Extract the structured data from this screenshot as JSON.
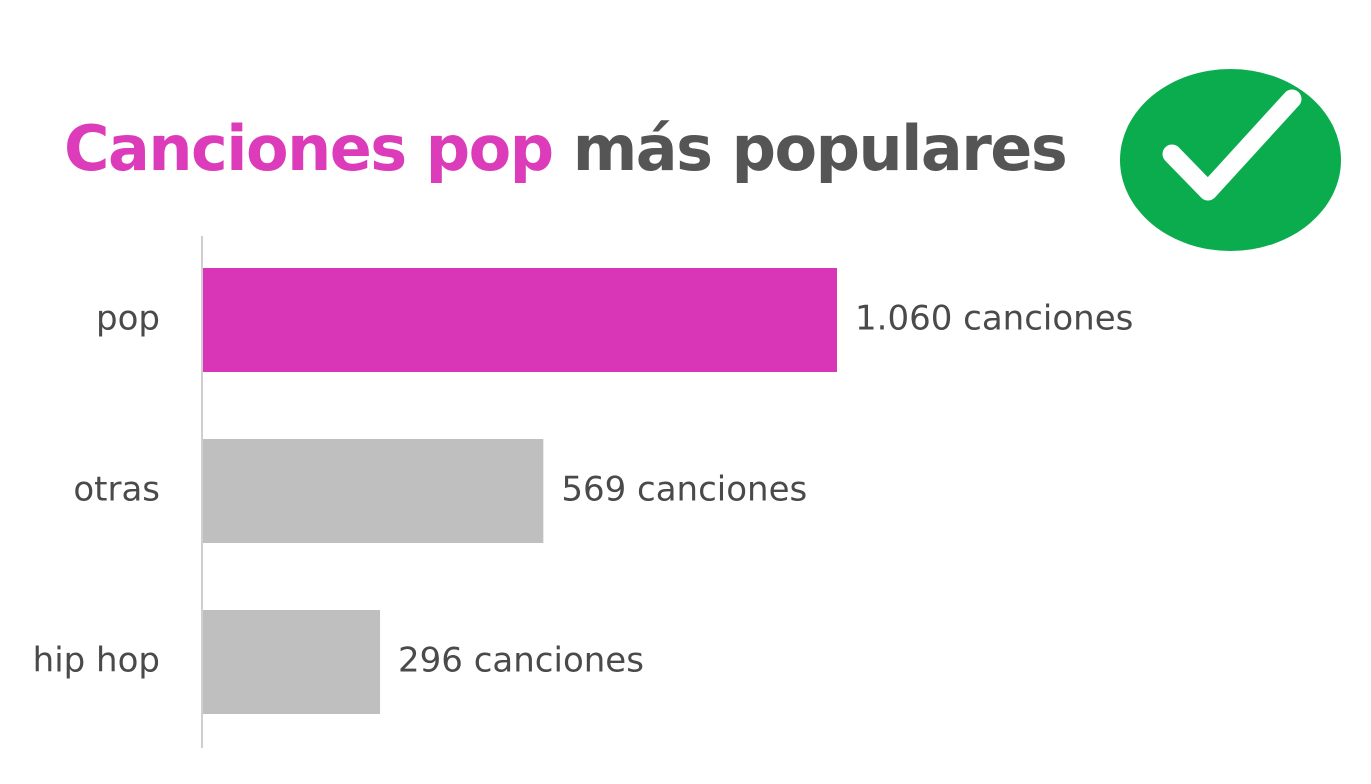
{
  "title": {
    "accent": "Canciones pop",
    "rest": "más populares"
  },
  "badge": {
    "icon": "check-icon",
    "color": "#0aac4e"
  },
  "chart_data": {
    "type": "bar",
    "orientation": "horizontal",
    "categories": [
      "pop",
      "otras",
      "hip hop"
    ],
    "values": [
      1060,
      569,
      296
    ],
    "value_labels": [
      "1.060 canciones",
      "569 canciones",
      "296 canciones"
    ],
    "colors": [
      "#d836b6",
      "#bfbfbf",
      "#bfbfbf"
    ],
    "xlim": [
      0,
      1060
    ],
    "grid": false,
    "legend": "none"
  }
}
